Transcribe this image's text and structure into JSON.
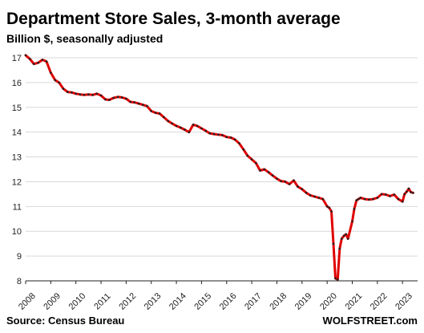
{
  "chart_data": {
    "type": "line",
    "title": "Department Store Sales, 3-month average",
    "subtitle": "Billion $, seasonally adjusted",
    "xlabel": "",
    "ylabel": "",
    "source": "Source: Census Bureau",
    "brand": "WOLFSTREET.com",
    "ylim": [
      8,
      17
    ],
    "xlim": [
      2008,
      2023.6
    ],
    "yticks": [
      8,
      9,
      10,
      11,
      12,
      13,
      14,
      15,
      16,
      17
    ],
    "xtick_labels": [
      "2008",
      "2009",
      "2010",
      "2011",
      "2012",
      "2013",
      "2014",
      "2015",
      "2016",
      "2017",
      "2018",
      "2019",
      "2020",
      "2021",
      "2022",
      "2023"
    ],
    "grid": {
      "horizontal": true,
      "vertical": false
    },
    "line_color": "#e00000",
    "marker_color": "#222222",
    "series": [
      {
        "name": "",
        "x": [
          2008.0,
          2008.17,
          2008.33,
          2008.5,
          2008.67,
          2008.83,
          2009.0,
          2009.17,
          2009.33,
          2009.5,
          2009.67,
          2009.83,
          2010.0,
          2010.17,
          2010.33,
          2010.5,
          2010.67,
          2010.83,
          2011.0,
          2011.17,
          2011.33,
          2011.5,
          2011.67,
          2011.83,
          2012.0,
          2012.17,
          2012.33,
          2012.5,
          2012.67,
          2012.83,
          2013.0,
          2013.17,
          2013.33,
          2013.5,
          2013.67,
          2013.83,
          2014.0,
          2014.17,
          2014.33,
          2014.5,
          2014.67,
          2014.83,
          2015.0,
          2015.17,
          2015.33,
          2015.5,
          2015.67,
          2015.83,
          2016.0,
          2016.17,
          2016.33,
          2016.5,
          2016.67,
          2016.83,
          2017.0,
          2017.17,
          2017.33,
          2017.5,
          2017.67,
          2017.83,
          2018.0,
          2018.17,
          2018.33,
          2018.5,
          2018.67,
          2018.83,
          2019.0,
          2019.17,
          2019.33,
          2019.5,
          2019.67,
          2019.83,
          2020.0,
          2020.08,
          2020.17,
          2020.25,
          2020.33,
          2020.42,
          2020.5,
          2020.58,
          2020.67,
          2020.75,
          2020.83,
          2021.0,
          2021.08,
          2021.17,
          2021.25,
          2021.33,
          2021.5,
          2021.67,
          2021.83,
          2022.0,
          2022.17,
          2022.33,
          2022.5,
          2022.67,
          2022.83,
          2023.0,
          2023.08,
          2023.17,
          2023.25,
          2023.33,
          2023.42
        ],
        "y": [
          17.1,
          16.95,
          16.75,
          16.8,
          16.92,
          16.85,
          16.4,
          16.1,
          16.0,
          15.75,
          15.62,
          15.6,
          15.55,
          15.52,
          15.5,
          15.52,
          15.5,
          15.55,
          15.48,
          15.32,
          15.3,
          15.38,
          15.42,
          15.4,
          15.35,
          15.22,
          15.2,
          15.15,
          15.1,
          15.05,
          14.85,
          14.78,
          14.75,
          14.6,
          14.45,
          14.35,
          14.25,
          14.18,
          14.1,
          14.0,
          14.3,
          14.25,
          14.15,
          14.05,
          13.95,
          13.92,
          13.9,
          13.88,
          13.8,
          13.78,
          13.7,
          13.55,
          13.3,
          13.05,
          12.9,
          12.75,
          12.45,
          12.5,
          12.38,
          12.25,
          12.12,
          12.02,
          12.0,
          11.9,
          12.05,
          11.8,
          11.7,
          11.55,
          11.45,
          11.4,
          11.35,
          11.3,
          11.0,
          10.95,
          10.8,
          9.5,
          8.1,
          8.05,
          9.3,
          9.7,
          9.82,
          9.88,
          9.7,
          10.4,
          10.9,
          11.25,
          11.3,
          11.35,
          11.3,
          11.28,
          11.3,
          11.35,
          11.5,
          11.48,
          11.42,
          11.48,
          11.3,
          11.2,
          11.5,
          11.6,
          11.72,
          11.58,
          11.55
        ]
      }
    ]
  }
}
